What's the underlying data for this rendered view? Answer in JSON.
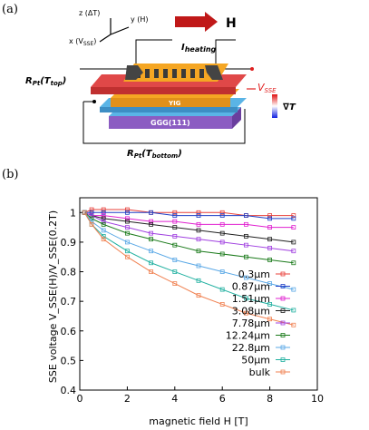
{
  "panel_a": {
    "label": "(a)",
    "axis_z": "z (ΔT)",
    "axis_y": "y (H)",
    "axis_x": "x (V",
    "axis_x_sub": "SSE",
    "axis_x_close": ")",
    "field_label": "H",
    "heating_label": "I",
    "heating_sub": "heating",
    "rpt_top": "R",
    "rpt_top_sub": "Pt",
    "rpt_top_arg": "(T",
    "rpt_top_arg_sub": "top",
    "rpt_top_close": ")",
    "rpt_bottom": "R",
    "rpt_bottom_sub": "Pt",
    "rpt_bottom_arg": "(T",
    "rpt_bottom_arg_sub": "bottom",
    "rpt_bottom_close": ")",
    "vsse": "V",
    "vsse_sub": "SSE",
    "gradient_label": "∇T",
    "yig_label": "YIG",
    "ggg_label": "GGG(111)",
    "colors": {
      "heater": "#f5a623",
      "pt": "#e04848",
      "yig": "#f5a623",
      "ggg_blue": "#5ab4e6",
      "ggg_purple": "#8b5cc2",
      "arrow": "#c01818"
    }
  },
  "panel_b": {
    "label": "(b)"
  },
  "chart_data": {
    "type": "line",
    "xlabel": "magnetic field H [T]",
    "ylabel": "SSE voltage V_SSE(H)/V_SSE(0.2T)",
    "xlim": [
      0,
      10
    ],
    "ylim": [
      0.4,
      1.05
    ],
    "xticks": [
      "0",
      "2",
      "4",
      "6",
      "8",
      "10"
    ],
    "yticks": [
      "0.4",
      "0.5",
      "0.6",
      "0.7",
      "0.8",
      "0.9",
      "1"
    ],
    "legend": "center-right",
    "grid": false,
    "series": [
      {
        "name": "0.3μm",
        "color": "#e8403a",
        "x": [
          0.2,
          0.5,
          1,
          2,
          3,
          4,
          5,
          6,
          7,
          8,
          9
        ],
        "y": [
          1.0,
          1.01,
          1.01,
          1.01,
          1.0,
          1.0,
          1.0,
          1.0,
          0.99,
          0.99,
          0.99
        ]
      },
      {
        "name": "0.87μm",
        "color": "#1f3fc6",
        "x": [
          0.2,
          0.5,
          1,
          2,
          3,
          4,
          5,
          6,
          7,
          8,
          9
        ],
        "y": [
          1.0,
          1.0,
          1.0,
          1.0,
          1.0,
          0.99,
          0.99,
          0.99,
          0.99,
          0.98,
          0.98
        ]
      },
      {
        "name": "1.51μm",
        "color": "#e020d0",
        "x": [
          0.2,
          0.5,
          1,
          2,
          3,
          4,
          5,
          6,
          7,
          8,
          9
        ],
        "y": [
          1.0,
          0.99,
          0.99,
          0.98,
          0.97,
          0.97,
          0.96,
          0.96,
          0.96,
          0.95,
          0.95
        ]
      },
      {
        "name": "3.08μm",
        "color": "#202020",
        "x": [
          0.2,
          0.5,
          1,
          2,
          3,
          4,
          5,
          6,
          7,
          8,
          9
        ],
        "y": [
          1.0,
          0.99,
          0.98,
          0.97,
          0.96,
          0.95,
          0.94,
          0.93,
          0.92,
          0.91,
          0.9
        ]
      },
      {
        "name": "7.78μm",
        "color": "#a040e0",
        "x": [
          0.2,
          0.5,
          1,
          2,
          3,
          4,
          5,
          6,
          7,
          8,
          9
        ],
        "y": [
          1.0,
          0.99,
          0.97,
          0.95,
          0.93,
          0.92,
          0.91,
          0.9,
          0.89,
          0.88,
          0.87
        ]
      },
      {
        "name": "12.24μm",
        "color": "#1a7a1a",
        "x": [
          0.2,
          0.5,
          1,
          2,
          3,
          4,
          5,
          6,
          7,
          8,
          9
        ],
        "y": [
          1.0,
          0.98,
          0.96,
          0.93,
          0.91,
          0.89,
          0.87,
          0.86,
          0.85,
          0.84,
          0.83
        ]
      },
      {
        "name": "22.8μm",
        "color": "#5aa8e6",
        "x": [
          0.2,
          0.5,
          1,
          2,
          3,
          4,
          5,
          6,
          7,
          8,
          9
        ],
        "y": [
          1.0,
          0.97,
          0.94,
          0.9,
          0.87,
          0.84,
          0.82,
          0.8,
          0.78,
          0.76,
          0.74
        ]
      },
      {
        "name": "50μm",
        "color": "#20b0a0",
        "x": [
          0.2,
          0.5,
          1,
          2,
          3,
          4,
          5,
          6,
          7,
          8,
          9
        ],
        "y": [
          1.0,
          0.96,
          0.92,
          0.87,
          0.83,
          0.8,
          0.77,
          0.74,
          0.71,
          0.69,
          0.67
        ]
      },
      {
        "name": "bulk",
        "color": "#f08050",
        "x": [
          0.2,
          0.5,
          1,
          2,
          3,
          4,
          5,
          6,
          7,
          8,
          9
        ],
        "y": [
          1.0,
          0.96,
          0.91,
          0.85,
          0.8,
          0.76,
          0.72,
          0.69,
          0.66,
          0.64,
          0.62
        ]
      }
    ]
  }
}
